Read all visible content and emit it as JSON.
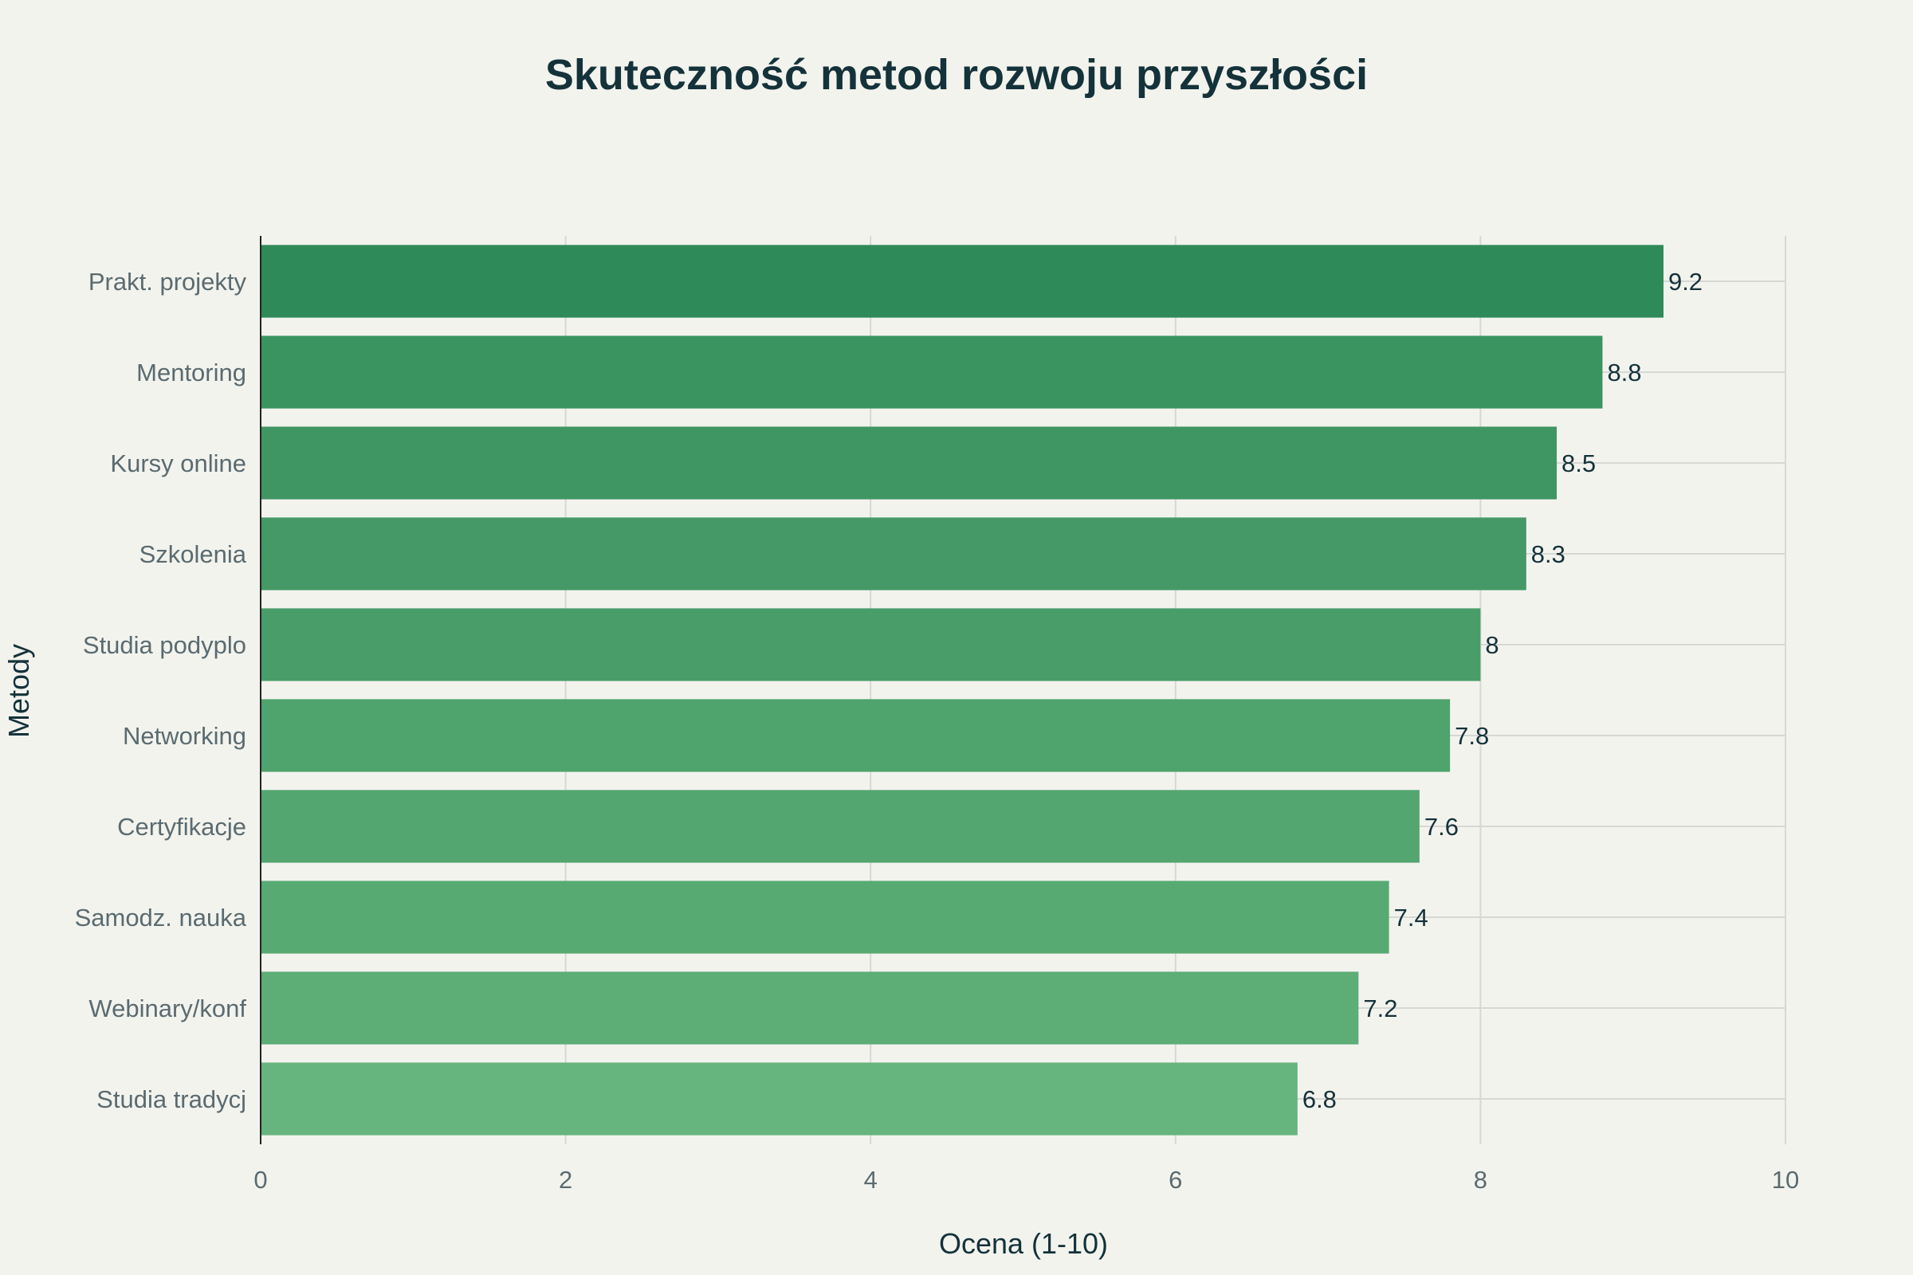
{
  "chart_data": {
    "type": "bar",
    "orientation": "horizontal",
    "title": "Skuteczność metod rozwoju przyszłości",
    "xlabel": "Ocena (1-10)",
    "ylabel": "Metody",
    "xlim": [
      0,
      10
    ],
    "xticks": [
      "0",
      "2",
      "4",
      "6",
      "8",
      "10"
    ],
    "grid": true,
    "categories": [
      "Prakt. projekty",
      "Mentoring",
      "Kursy online",
      "Szkolenia",
      "Studia podyplo",
      "Networking",
      "Certyfikacje",
      "Samodz. nauka",
      "Webinary/konf",
      "Studia tradycj"
    ],
    "values": [
      9.2,
      8.8,
      8.5,
      8.3,
      8,
      7.8,
      7.6,
      7.4,
      7.2,
      6.8
    ],
    "value_labels": [
      "9.2",
      "8.8",
      "8.5",
      "8.3",
      "8",
      "7.8",
      "7.6",
      "7.4",
      "7.2",
      "6.8"
    ],
    "colors": [
      "#2e8a58",
      "#3a9460",
      "#409663",
      "#449966",
      "#499d69",
      "#4fa36c",
      "#53a66f",
      "#57aa72",
      "#5dad76",
      "#66b47e"
    ],
    "background": "#f3f3ee",
    "grid_color": "#d6d8d4"
  }
}
